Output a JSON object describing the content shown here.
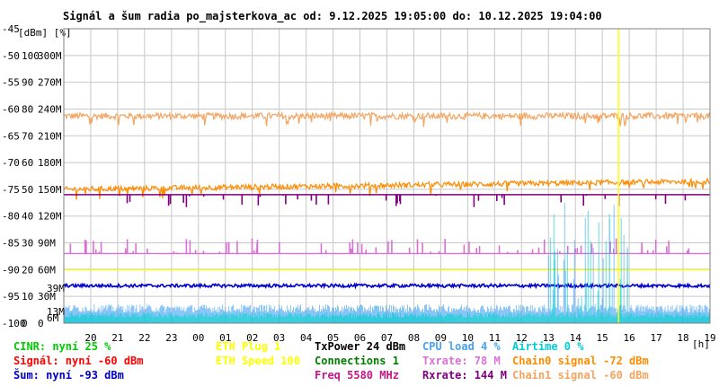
{
  "chart_data": {
    "type": "line",
    "title": "Signál a šum radia po_majsterkova_ac od: 9.12.2025 19:05:00 do: 10.12.2025 19:04:00",
    "x_unit": "[h]",
    "x_ticks": [
      "20",
      "21",
      "22",
      "23",
      "00",
      "01",
      "02",
      "03",
      "04",
      "05",
      "06",
      "07",
      "08",
      "09",
      "10",
      "11",
      "12",
      "13",
      "14",
      "15",
      "16",
      "17",
      "18",
      "19"
    ],
    "y_unit_header": "[dBm]  [%]",
    "y_ticks": [
      {
        "dbm": "-45",
        "pct": "",
        "rate": ""
      },
      {
        "dbm": "-50",
        "pct": "100",
        "rate": "300M"
      },
      {
        "dbm": "-55",
        "pct": "90",
        "rate": "270M"
      },
      {
        "dbm": "-60",
        "pct": "80",
        "rate": "240M"
      },
      {
        "dbm": "-65",
        "pct": "70",
        "rate": "210M"
      },
      {
        "dbm": "-70",
        "pct": "60",
        "rate": "180M"
      },
      {
        "dbm": "-75",
        "pct": "50",
        "rate": "150M"
      },
      {
        "dbm": "-80",
        "pct": "40",
        "rate": "120M"
      },
      {
        "dbm": "-85",
        "pct": "30",
        "rate": "90M"
      },
      {
        "dbm": "-90",
        "pct": "20",
        "rate": "60M"
      },
      {
        "dbm": "-95",
        "pct": "10",
        "rate": "30M"
      },
      {
        "dbm": "-100",
        "pct": "0",
        "rate": "0"
      }
    ],
    "ylim_dbm": [
      -100,
      -45
    ],
    "ylim_pct": [
      0,
      110
    ],
    "ylim_rate_mbps": [
      0,
      330
    ],
    "xlim_hours": [
      0,
      24
    ],
    "grid": true,
    "marker_hour": 20.6,
    "small_labels": [
      {
        "text": "39M",
        "rate": 39,
        "color": "#DA70D6"
      },
      {
        "text": "13M",
        "rate": 13,
        "color": "#DA70D6"
      },
      {
        "text": "6M",
        "rate": 6,
        "color": "#DA70D6"
      }
    ],
    "series": [
      {
        "name": "Chain1 signal",
        "unit": "dBm",
        "base": -61.3,
        "noise": 0.6,
        "spikes": 0,
        "color": "#F4A460"
      },
      {
        "name": "Chain0 signal",
        "unit": "dBm",
        "base": -75.0,
        "noise": 0.5,
        "spikes": 0,
        "trend": 1.5,
        "color": "#FF8C00"
      },
      {
        "name": "Rxrate",
        "unit": "M",
        "base": 144,
        "noise": 0,
        "spikes": 40,
        "spike_to": 130,
        "color": "#800080"
      },
      {
        "name": "Txrate",
        "unit": "M",
        "base": 78,
        "noise": 0,
        "spikes": 80,
        "spike_to": 95,
        "color": "#DA70D6"
      },
      {
        "name": "Connections",
        "unit": "",
        "base": 1,
        "color": "#008000"
      },
      {
        "name": "ETH Speed",
        "unit": "",
        "base": 100,
        "color": "#FFFF00"
      },
      {
        "name": "Šum",
        "unit": "dBm",
        "base": -93,
        "noise": 0.3,
        "color": "#0000CD"
      },
      {
        "name": "CPU load",
        "unit": "%",
        "base": 4,
        "noise": 3,
        "burst_from": 18,
        "burst_to": 21,
        "color": "#46A3F2"
      },
      {
        "name": "Airtime",
        "unit": "%",
        "base": 2,
        "noise": 2,
        "burst_from": 18,
        "burst_to": 21,
        "color": "#00CED1"
      }
    ]
  },
  "legend": [
    {
      "text": "CINR: nyní 25 %",
      "color": "#00CC00"
    },
    {
      "text": "Signál: nyní -60 dBm",
      "color": "#FF0000"
    },
    {
      "text": "Šum: nyní -93 dBm",
      "color": "#0000CD"
    },
    {
      "text": "ETH Plug 1",
      "color": "#FFFF00"
    },
    {
      "text": "ETH Speed 100",
      "color": "#FFFF00"
    },
    {
      "text": "TxPower 24 dBm",
      "color": "#000000"
    },
    {
      "text": "Connections 1",
      "color": "#008000"
    },
    {
      "text": "Freq 5580 MHz",
      "color": "#C71585"
    },
    {
      "text": "CPU load 4 %",
      "color": "#46A3F2"
    },
    {
      "text": "Txrate: 78 M",
      "color": "#DA70D6"
    },
    {
      "text": "Rxrate: 144 M",
      "color": "#800080"
    },
    {
      "text": "Airtime 0 %",
      "color": "#00CED1"
    },
    {
      "text": "Chain0 signal -72 dBm",
      "color": "#FF8C00"
    },
    {
      "text": "Chain1 signal -60 dBm",
      "color": "#F4A460"
    }
  ]
}
